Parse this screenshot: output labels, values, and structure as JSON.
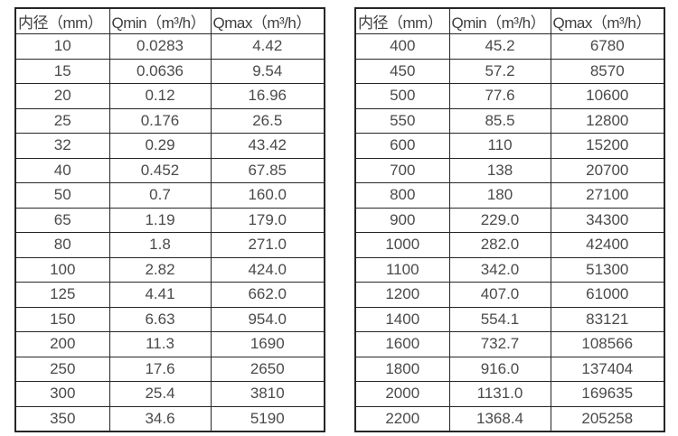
{
  "colors": {
    "background": "#ffffff",
    "border": "#262626",
    "text": "#4a4a4a"
  },
  "chart_data": [
    {
      "type": "table",
      "name": "flow-spec-small-diameters",
      "columns": [
        "内径（mm）",
        "Qmin（m³/h）",
        "Qmax（m³/h）"
      ],
      "rows": [
        [
          "10",
          "0.0283",
          "4.42"
        ],
        [
          "15",
          "0.0636",
          "9.54"
        ],
        [
          "20",
          "0.12",
          "16.96"
        ],
        [
          "25",
          "0.176",
          "26.5"
        ],
        [
          "32",
          "0.29",
          "43.42"
        ],
        [
          "40",
          "0.452",
          "67.85"
        ],
        [
          "50",
          "0.7",
          "160.0"
        ],
        [
          "65",
          "1.19",
          "179.0"
        ],
        [
          "80",
          "1.8",
          "271.0"
        ],
        [
          "100",
          "2.82",
          "424.0"
        ],
        [
          "125",
          "4.41",
          "662.0"
        ],
        [
          "150",
          "6.63",
          "954.0"
        ],
        [
          "200",
          "11.3",
          "1690"
        ],
        [
          "250",
          "17.6",
          "2650"
        ],
        [
          "300",
          "25.4",
          "3810"
        ],
        [
          "350",
          "34.6",
          "5190"
        ]
      ]
    },
    {
      "type": "table",
      "name": "flow-spec-large-diameters",
      "columns": [
        "内径（mm）",
        "Qmin（m³/h）",
        "Qmax（m³/h）"
      ],
      "rows": [
        [
          "400",
          "45.2",
          "6780"
        ],
        [
          "450",
          "57.2",
          "8570"
        ],
        [
          "500",
          "77.6",
          "10600"
        ],
        [
          "550",
          "85.5",
          "12800"
        ],
        [
          "600",
          "110",
          "15200"
        ],
        [
          "700",
          "138",
          "20700"
        ],
        [
          "800",
          "180",
          "27100"
        ],
        [
          "900",
          "229.0",
          "34300"
        ],
        [
          "1000",
          "282.0",
          "42400"
        ],
        [
          "1100",
          "342.0",
          "51300"
        ],
        [
          "1200",
          "407.0",
          "61000"
        ],
        [
          "1400",
          "554.1",
          "83121"
        ],
        [
          "1600",
          "732.7",
          "108566"
        ],
        [
          "1800",
          "916.0",
          "137404"
        ],
        [
          "2000",
          "1131.0",
          "169635"
        ],
        [
          "2200",
          "1368.4",
          "205258"
        ]
      ]
    }
  ]
}
